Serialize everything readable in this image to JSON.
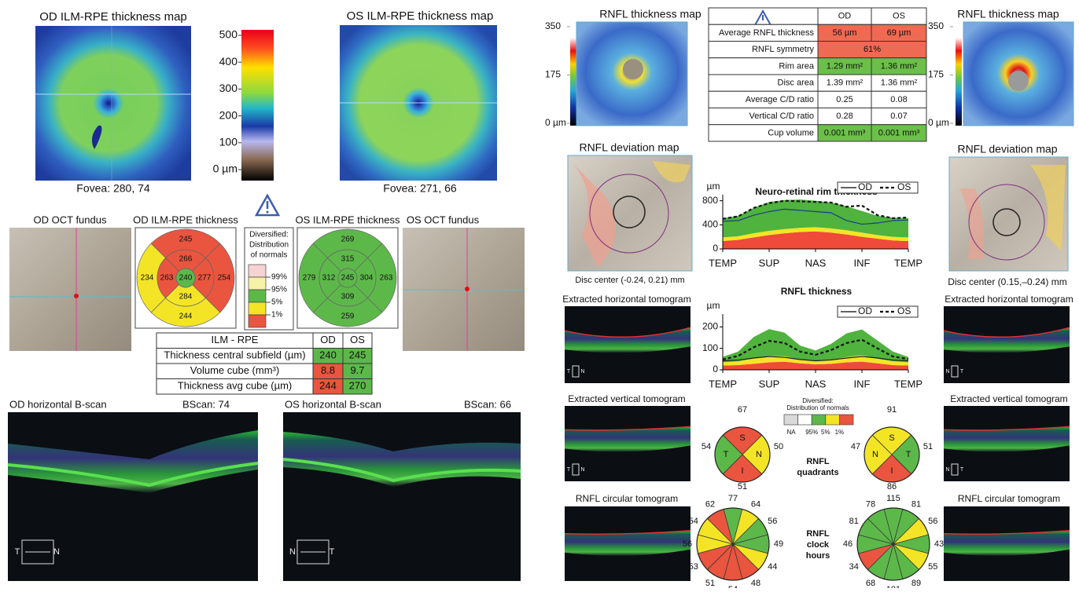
{
  "left": {
    "od_map": {
      "title": "OD ILM-RPE thickness map",
      "caption": "Fovea: 280, 74"
    },
    "os_map": {
      "title": "OS ILM-RPE thickness map",
      "caption": "Fovea: 271, 66"
    },
    "scale": {
      "ticks": [
        500,
        400,
        300,
        200,
        100,
        {
          "value": 0,
          "label": "0 µm"
        }
      ]
    },
    "od_fundus_title": "OD OCT fundus",
    "os_fundus_title": "OS OCT fundus",
    "od_grid": {
      "title": "OD ILM-RPE thickness",
      "center": 240,
      "inner": [
        266,
        277,
        284,
        263
      ],
      "outer": [
        245,
        254,
        244,
        234
      ],
      "center_color": "#5db84a",
      "inner_colors": [
        "#e9553f",
        "#e9553f",
        "#f3e526",
        "#e9553f"
      ],
      "outer_colors": [
        "#e9553f",
        "#e9553f",
        "#f3e526",
        "#f3e526"
      ]
    },
    "os_grid": {
      "title": "OS ILM-RPE thickness",
      "center": 245,
      "inner": [
        315,
        304,
        309,
        312
      ],
      "outer": [
        269,
        263,
        259,
        279
      ],
      "center_color": "#5db84a",
      "inner_colors": [
        "#5db84a",
        "#5db84a",
        "#5db84a",
        "#5db84a"
      ],
      "outer_colors": [
        "#5db84a",
        "#5db84a",
        "#5db84a",
        "#5db84a"
      ]
    },
    "legend": {
      "title": [
        "Diversified:",
        "Distribution",
        "of normals"
      ],
      "levels": [
        "99%",
        "95%",
        "5%",
        "1%"
      ],
      "colors": [
        "#f6d3d3",
        "#f5f1a8",
        "#5db84a",
        "#f3e526",
        "#e9553f"
      ]
    },
    "table": {
      "header": [
        "ILM - RPE",
        "OD",
        "OS"
      ],
      "rows": [
        [
          "Thickness central subfield (µm)",
          240,
          245
        ],
        [
          "Volume cube (mm³)",
          8.8,
          9.7
        ],
        [
          "Thickness avg cube (µm)",
          244,
          270
        ]
      ],
      "cell_colors": [
        [
          "#5db84a",
          "#5db84a"
        ],
        [
          "#e9553f",
          "#5db84a"
        ],
        [
          "#e9553f",
          "#5db84a"
        ]
      ]
    },
    "od_bscan": {
      "title": "OD horizontal B-scan",
      "index_label": "BScan:  74",
      "orient": [
        "T",
        "N"
      ]
    },
    "os_bscan": {
      "title": "OS horizontal B-scan",
      "index_label": "BScan:  66",
      "orient": [
        "N",
        "T"
      ]
    }
  },
  "right": {
    "od_rnfl_map": {
      "title": "RNFL thickness map",
      "ticks": [
        350,
        175,
        {
          "value": 0,
          "label": "0 µm"
        }
      ]
    },
    "os_rnfl_map": {
      "title": "RNFL thickness map",
      "ticks": [
        350,
        175,
        {
          "value": 0,
          "label": "0 µm"
        }
      ]
    },
    "table": {
      "header": [
        "OD",
        "OS"
      ],
      "rows": [
        [
          "Average RNFL thickness",
          "56 µm",
          "69 µm"
        ],
        [
          "RNFL symmetry",
          "61%"
        ],
        [
          "Rim area",
          "1.29 mm²",
          "1.36 mm²"
        ],
        [
          "Disc area",
          "1.39 mm²",
          "1.36 mm²"
        ],
        [
          "Average C/D ratio",
          0.25,
          0.08
        ],
        [
          "Vertical C/D ratio",
          0.28,
          0.07
        ],
        [
          "Cup volume",
          "0.001 mm³",
          "0.001 mm³"
        ]
      ],
      "cell_colors": [
        [
          "#ee6a52",
          "#ee6a52"
        ],
        [
          "#ee6a52"
        ],
        [
          "#6cbf4a",
          "#6cbf4a"
        ],
        [
          "#ffffff",
          "#ffffff"
        ],
        [
          "#ffffff",
          "#ffffff"
        ],
        [
          "#ffffff",
          "#ffffff"
        ],
        [
          "#6cbf4a",
          "#6cbf4a"
        ]
      ]
    },
    "od_deviation": {
      "title": "RNFL deviation map",
      "caption": "Disc center (-0.24, 0.21) mm"
    },
    "os_deviation": {
      "title": "RNFL deviation map",
      "caption": "Disc center (0.15,–0.24) mm"
    },
    "rim_chart": {
      "type": "line",
      "title": "Neuro-retinal rim thickness",
      "y_label": "µm",
      "categories": [
        "TEMP",
        "SUP",
        "NAS",
        "INF",
        "TEMP"
      ],
      "ylim": [
        0,
        900
      ],
      "yticks": [
        0,
        400,
        800
      ],
      "bands": [
        {
          "color": "#ef4a3a",
          "values": [
            130,
            150,
            190,
            230,
            260,
            280,
            290,
            270,
            240,
            200,
            170,
            140,
            130
          ]
        },
        {
          "color": "#f3e526",
          "values": [
            60,
            60,
            70,
            70,
            70,
            70,
            70,
            70,
            70,
            70,
            60,
            60,
            60
          ]
        },
        {
          "color": "#4fb33e",
          "values": [
            320,
            340,
            420,
            480,
            480,
            470,
            440,
            430,
            400,
            360,
            320,
            320,
            320
          ]
        }
      ],
      "series": [
        {
          "name": "OD",
          "line_style": "solid",
          "color": "#1c3b8a",
          "values": [
            460,
            470,
            560,
            620,
            660,
            640,
            620,
            600,
            470,
            410,
            430,
            470,
            480
          ]
        },
        {
          "name": "OS",
          "line_style": "dashed",
          "color": "#111111",
          "values": [
            500,
            540,
            680,
            760,
            800,
            790,
            780,
            770,
            700,
            720,
            560,
            510,
            520
          ]
        }
      ]
    },
    "rnfl_chart": {
      "type": "line",
      "title": "RNFL thickness",
      "y_label": "µm",
      "categories": [
        "TEMP",
        "SUP",
        "NAS",
        "INF",
        "TEMP"
      ],
      "ylim": [
        0,
        260
      ],
      "yticks": [
        0,
        100,
        200
      ],
      "bands": [
        {
          "color": "#ef4a3a",
          "values": [
            20,
            22,
            28,
            35,
            38,
            30,
            25,
            28,
            35,
            38,
            30,
            22,
            20
          ]
        },
        {
          "color": "#f3e526",
          "values": [
            15,
            18,
            25,
            30,
            25,
            18,
            15,
            18,
            25,
            30,
            22,
            18,
            15
          ]
        },
        {
          "color": "#4fb33e",
          "values": [
            25,
            45,
            100,
            125,
            110,
            65,
            50,
            75,
            110,
            120,
            85,
            45,
            25
          ]
        }
      ],
      "series": [
        {
          "name": "OD",
          "line_style": "solid",
          "color": "#1c1c1c",
          "values": [
            42,
            45,
            55,
            62,
            58,
            48,
            42,
            46,
            55,
            62,
            55,
            45,
            42
          ]
        },
        {
          "name": "OS",
          "line_style": "dashed",
          "color": "#111111",
          "values": [
            48,
            65,
            105,
            135,
            125,
            85,
            70,
            92,
            125,
            140,
            100,
            62,
            50
          ]
        }
      ]
    },
    "od_tomograms": [
      {
        "title": "Extracted horizontal tomogram",
        "orient": [
          "T",
          "N"
        ]
      },
      {
        "title": "Extracted vertical tomogram",
        "orient": [
          "T",
          "N"
        ]
      },
      {
        "title": "RNFL circular tomogram"
      }
    ],
    "os_tomograms": [
      {
        "title": "Extracted horizontal tomogram",
        "orient": [
          "N",
          "T"
        ]
      },
      {
        "title": "Extracted vertical tomogram",
        "orient": [
          "N",
          "T"
        ]
      },
      {
        "title": "RNFL circular tomogram"
      }
    ],
    "quadrants": {
      "label": [
        "RNFL",
        "quadrants"
      ],
      "legend_title": [
        "Diversified:",
        "Distribution of normals"
      ],
      "legend_levels": [
        "NA",
        "95%",
        "5%",
        "1%"
      ],
      "legend_colors": [
        "#d9d9d9",
        "#ffffff",
        "#5db84a",
        "#f3e526",
        "#e9553f"
      ],
      "od": {
        "letters": [
          "S",
          "N",
          "I",
          "T"
        ],
        "values": [
          67,
          50,
          51,
          54
        ],
        "colors": [
          "#e9553f",
          "#f3e526",
          "#e9553f",
          "#5db84a"
        ]
      },
      "os": {
        "letters": [
          "S",
          "T",
          "I",
          "N"
        ],
        "values": [
          91,
          51,
          86,
          47
        ],
        "colors": [
          "#f3e526",
          "#5db84a",
          "#e9553f",
          "#f3e526"
        ]
      }
    },
    "clock_hours": {
      "label": [
        "RNFL",
        "clock",
        "hours"
      ],
      "od": {
        "values": [
          77,
          64,
          56,
          49,
          44,
          48,
          54,
          51,
          53,
          56,
          54,
          62
        ],
        "colors": [
          "#5db84a",
          "#f3e526",
          "#5db84a",
          "#5db84a",
          "#f3e526",
          "#e9553f",
          "#e9553f",
          "#e9553f",
          "#e9553f",
          "#f3e526",
          "#f3e526",
          "#e9553f"
        ]
      },
      "os": {
        "values": [
          115,
          81,
          56,
          43,
          55,
          89,
          101,
          68,
          34,
          46,
          81,
          78
        ],
        "colors": [
          "#5db84a",
          "#5db84a",
          "#f3e526",
          "#5db84a",
          "#f3e526",
          "#5db84a",
          "#5db84a",
          "#5db84a",
          "#e9553f",
          "#5db84a",
          "#5db84a",
          "#5db84a"
        ]
      }
    }
  }
}
